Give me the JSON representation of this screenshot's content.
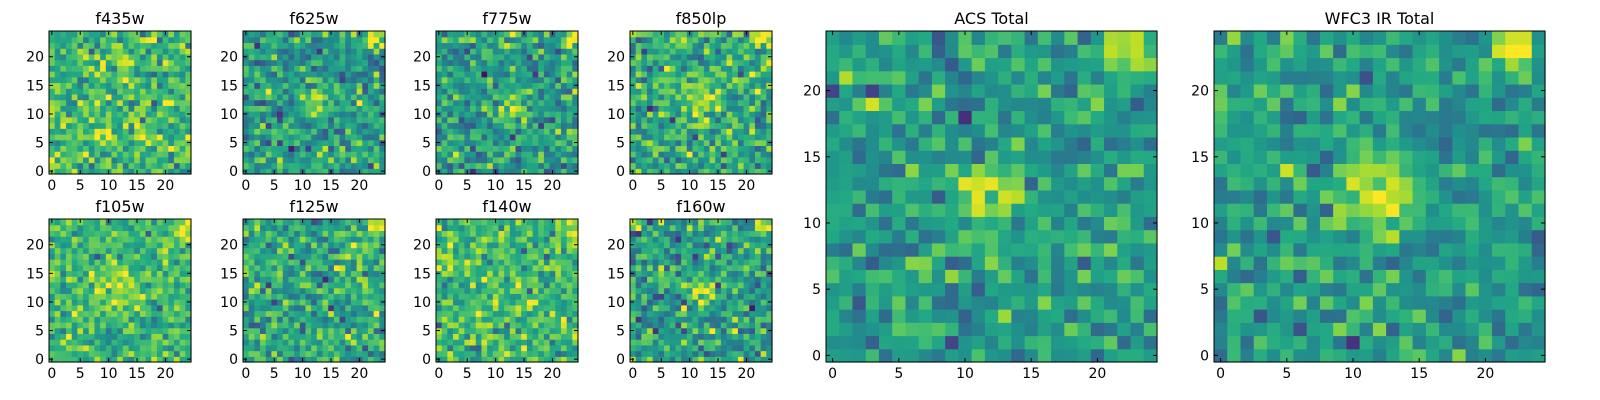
{
  "chart_data": [
    {
      "type": "heatmap",
      "title": "f435w",
      "size": 25,
      "xticks": [
        0,
        5,
        10,
        15,
        20
      ],
      "yticks": [
        0,
        5,
        10,
        15,
        20
      ],
      "colormap": "viridis",
      "pattern": {
        "noise_mean": 0.68,
        "noise_std": 0.15,
        "sources": []
      }
    },
    {
      "type": "heatmap",
      "title": "f625w",
      "size": 25,
      "xticks": [
        0,
        5,
        10,
        15,
        20
      ],
      "yticks": [
        0,
        5,
        10,
        15,
        20
      ],
      "colormap": "viridis",
      "pattern": {
        "noise_mean": 0.55,
        "noise_std": 0.15,
        "sources": [
          {
            "x": 12,
            "y": 12,
            "amp": 0.35,
            "sigma": 1.6
          },
          {
            "x": 23,
            "y": 23,
            "amp": 0.45,
            "sigma": 1.2
          }
        ]
      }
    },
    {
      "type": "heatmap",
      "title": "f775w",
      "size": 25,
      "xticks": [
        0,
        5,
        10,
        15,
        20
      ],
      "yticks": [
        0,
        5,
        10,
        15,
        20
      ],
      "colormap": "viridis",
      "pattern": {
        "noise_mean": 0.55,
        "noise_std": 0.15,
        "sources": [
          {
            "x": 13,
            "y": 11,
            "amp": 0.35,
            "sigma": 1.8
          },
          {
            "x": 23,
            "y": 23,
            "amp": 0.45,
            "sigma": 1.2
          }
        ]
      }
    },
    {
      "type": "heatmap",
      "title": "f850lp",
      "size": 25,
      "xticks": [
        0,
        5,
        10,
        15,
        20
      ],
      "yticks": [
        0,
        5,
        10,
        15,
        20
      ],
      "colormap": "viridis",
      "pattern": {
        "noise_mean": 0.62,
        "noise_std": 0.16,
        "sources": [
          {
            "x": 12,
            "y": 12,
            "amp": 0.3,
            "sigma": 2.2
          },
          {
            "x": 23,
            "y": 23,
            "amp": 0.4,
            "sigma": 1.2
          }
        ]
      }
    },
    {
      "type": "heatmap",
      "title": "f105w",
      "size": 25,
      "xticks": [
        0,
        5,
        10,
        15,
        20
      ],
      "yticks": [
        0,
        5,
        10,
        15,
        20
      ],
      "colormap": "viridis",
      "pattern": {
        "noise_mean": 0.66,
        "noise_std": 0.13,
        "sources": [
          {
            "x": 11,
            "y": 13,
            "amp": 0.25,
            "sigma": 2.5
          },
          {
            "x": 23,
            "y": 23,
            "amp": 0.35,
            "sigma": 1.2
          }
        ]
      }
    },
    {
      "type": "heatmap",
      "title": "f125w",
      "size": 25,
      "xticks": [
        0,
        5,
        10,
        15,
        20
      ],
      "yticks": [
        0,
        5,
        10,
        15,
        20
      ],
      "colormap": "viridis",
      "pattern": {
        "noise_mean": 0.6,
        "noise_std": 0.15,
        "sources": [
          {
            "x": 23,
            "y": 23,
            "amp": 0.35,
            "sigma": 1.2
          }
        ]
      }
    },
    {
      "type": "heatmap",
      "title": "f140w",
      "size": 25,
      "xticks": [
        0,
        5,
        10,
        15,
        20
      ],
      "yticks": [
        0,
        5,
        10,
        15,
        20
      ],
      "colormap": "viridis",
      "pattern": {
        "noise_mean": 0.68,
        "noise_std": 0.14,
        "sources": [
          {
            "x": 23,
            "y": 23,
            "amp": 0.3,
            "sigma": 1.2
          }
        ]
      }
    },
    {
      "type": "heatmap",
      "title": "f160w",
      "size": 25,
      "xticks": [
        0,
        5,
        10,
        15,
        20
      ],
      "yticks": [
        0,
        5,
        10,
        15,
        20
      ],
      "colormap": "viridis",
      "pattern": {
        "noise_mean": 0.55,
        "noise_std": 0.16,
        "sources": [
          {
            "x": 12,
            "y": 12,
            "amp": 0.3,
            "sigma": 2.0
          },
          {
            "x": 23,
            "y": 23,
            "amp": 0.45,
            "sigma": 1.2
          }
        ]
      }
    },
    {
      "type": "heatmap",
      "title": "ACS Total",
      "size": 25,
      "xticks": [
        0,
        5,
        10,
        15,
        20
      ],
      "yticks": [
        0,
        5,
        10,
        15,
        20
      ],
      "colormap": "viridis",
      "pattern": {
        "noise_mean": 0.55,
        "noise_std": 0.12,
        "sources": [
          {
            "x": 12,
            "y": 12,
            "amp": 0.4,
            "sigma": 1.5
          },
          {
            "x": 22,
            "y": 23,
            "amp": 0.45,
            "sigma": 1.3
          }
        ]
      }
    },
    {
      "type": "heatmap",
      "title": "WFC3 IR Total",
      "size": 25,
      "xticks": [
        0,
        5,
        10,
        15,
        20
      ],
      "yticks": [
        0,
        5,
        10,
        15,
        20
      ],
      "colormap": "viridis",
      "pattern": {
        "noise_mean": 0.55,
        "noise_std": 0.12,
        "sources": [
          {
            "x": 12,
            "y": 12,
            "amp": 0.4,
            "sigma": 2.0
          },
          {
            "x": 22,
            "y": 23,
            "amp": 0.45,
            "sigma": 1.3
          }
        ]
      }
    }
  ]
}
